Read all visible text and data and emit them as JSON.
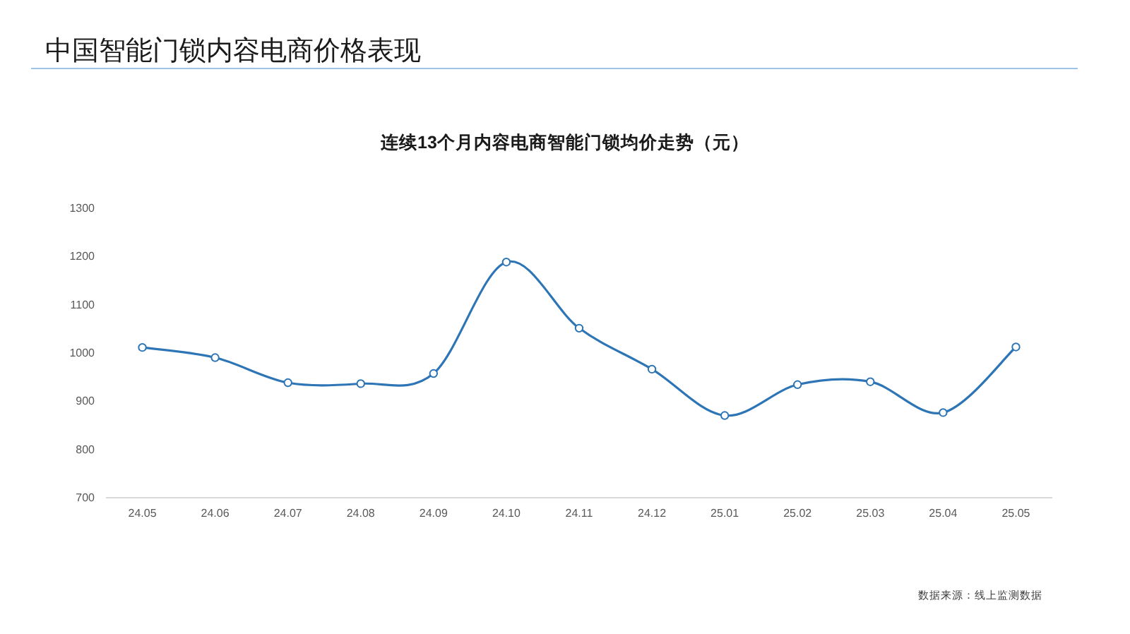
{
  "chart_data": {
    "type": "line",
    "title": "中国智能门锁内容电商价格表现",
    "subtitle": "连续13个月内容电商智能门锁均价走势（元）",
    "categories": [
      "24.05",
      "24.06",
      "24.07",
      "24.08",
      "24.09",
      "24.10",
      "24.11",
      "24.12",
      "25.01",
      "25.02",
      "25.03",
      "25.04",
      "25.05"
    ],
    "series": [
      {
        "color": "#2e75b6",
        "values": [
          1010,
          989,
          937,
          935,
          956,
          1187,
          1050,
          965,
          869,
          933,
          939,
          875,
          1011
        ]
      }
    ],
    "ylim": [
      700,
      1300
    ],
    "yticks": [
      700,
      800,
      900,
      1000,
      1100,
      1200,
      1300
    ],
    "marker": "circle",
    "annotations": [
      "数据来源：线上监测数据"
    ]
  }
}
